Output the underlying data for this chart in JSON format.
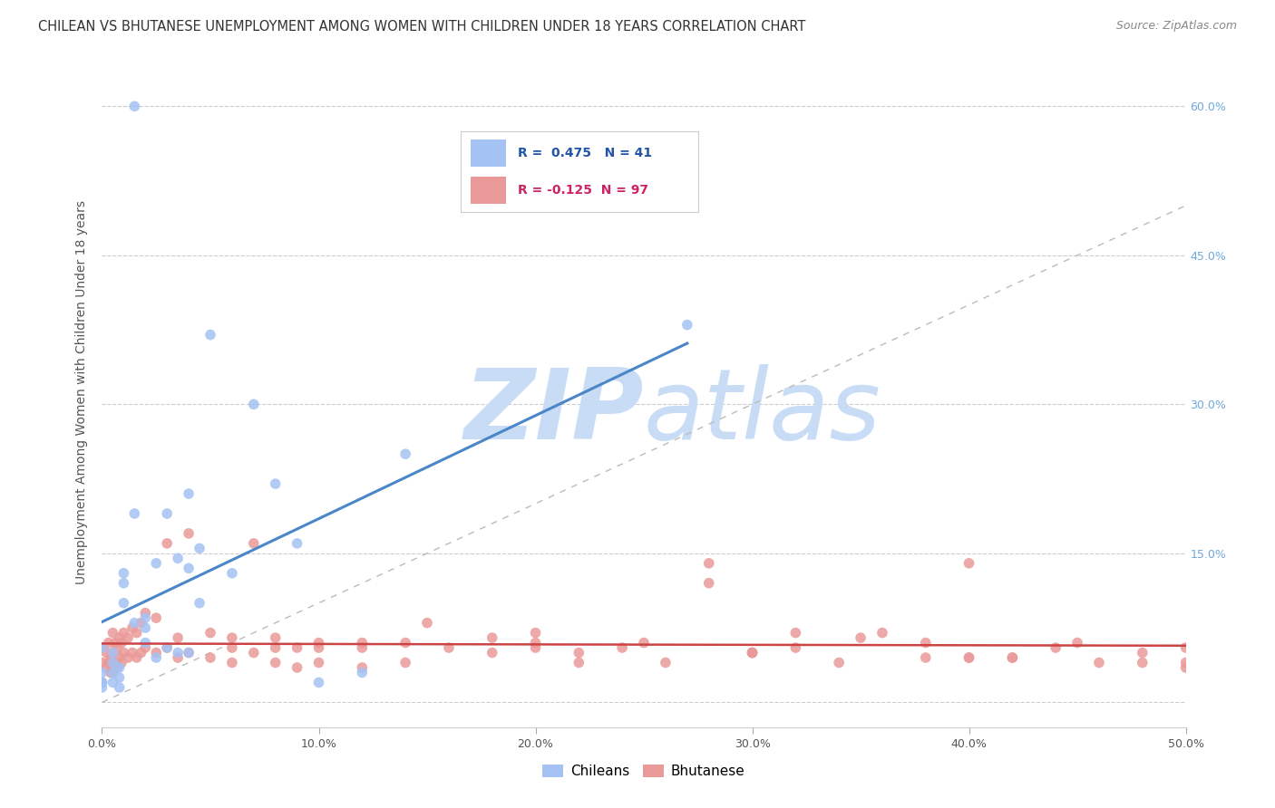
{
  "title": "CHILEAN VS BHUTANESE UNEMPLOYMENT AMONG WOMEN WITH CHILDREN UNDER 18 YEARS CORRELATION CHART",
  "source": "Source: ZipAtlas.com",
  "ylabel": "Unemployment Among Women with Children Under 18 years",
  "xlim": [
    0.0,
    0.5
  ],
  "ylim": [
    -0.025,
    0.65
  ],
  "chilean_R": 0.475,
  "chilean_N": 41,
  "bhutanese_R": -0.125,
  "bhutanese_N": 97,
  "chilean_color": "#a4c2f4",
  "bhutanese_color": "#ea9999",
  "chilean_line_color": "#4a86c8",
  "bhutanese_line_color": "#cc4444",
  "diagonal_color": "#bbbbbb",
  "watermark_color": "#ddeeff",
  "background_color": "#ffffff",
  "title_fontsize": 10.5,
  "axis_label_fontsize": 10,
  "tick_fontsize": 9,
  "right_tick_color": "#6fa8dc",
  "chilean_x": [
    0.015,
    0.0,
    0.005,
    0.005,
    0.01,
    0.01,
    0.01,
    0.015,
    0.015,
    0.02,
    0.02,
    0.02,
    0.025,
    0.025,
    0.03,
    0.03,
    0.035,
    0.035,
    0.04,
    0.04,
    0.04,
    0.045,
    0.045,
    0.05,
    0.06,
    0.07,
    0.08,
    0.09,
    0.1,
    0.12,
    0.14,
    0.0,
    0.0,
    0.0,
    0.0,
    0.005,
    0.005,
    0.008,
    0.008,
    0.008,
    0.27
  ],
  "chilean_y": [
    0.6,
    0.055,
    0.05,
    0.04,
    0.1,
    0.12,
    0.13,
    0.08,
    0.19,
    0.06,
    0.075,
    0.085,
    0.045,
    0.14,
    0.055,
    0.19,
    0.05,
    0.145,
    0.05,
    0.135,
    0.21,
    0.1,
    0.155,
    0.37,
    0.13,
    0.3,
    0.22,
    0.16,
    0.02,
    0.03,
    0.25,
    0.02,
    0.015,
    0.02,
    0.03,
    0.02,
    0.03,
    0.015,
    0.025,
    0.035,
    0.38
  ],
  "bhutanese_x": [
    0.0,
    0.0,
    0.0,
    0.002,
    0.002,
    0.003,
    0.003,
    0.004,
    0.004,
    0.005,
    0.005,
    0.005,
    0.006,
    0.006,
    0.007,
    0.007,
    0.008,
    0.008,
    0.009,
    0.009,
    0.01,
    0.01,
    0.012,
    0.012,
    0.014,
    0.014,
    0.016,
    0.016,
    0.018,
    0.018,
    0.02,
    0.02,
    0.025,
    0.025,
    0.03,
    0.03,
    0.035,
    0.035,
    0.04,
    0.04,
    0.05,
    0.05,
    0.06,
    0.06,
    0.07,
    0.07,
    0.08,
    0.08,
    0.09,
    0.09,
    0.1,
    0.1,
    0.12,
    0.12,
    0.14,
    0.14,
    0.16,
    0.18,
    0.2,
    0.22,
    0.24,
    0.26,
    0.28,
    0.3,
    0.32,
    0.34,
    0.36,
    0.38,
    0.4,
    0.42,
    0.44,
    0.46,
    0.48,
    0.5,
    0.15,
    0.2,
    0.25,
    0.3,
    0.35,
    0.4,
    0.45,
    0.5,
    0.1,
    0.2,
    0.3,
    0.4,
    0.5,
    0.12,
    0.22,
    0.32,
    0.42,
    0.08,
    0.18,
    0.28,
    0.38,
    0.48,
    0.06
  ],
  "bhutanese_y": [
    0.055,
    0.04,
    0.02,
    0.05,
    0.035,
    0.06,
    0.04,
    0.045,
    0.03,
    0.07,
    0.05,
    0.03,
    0.06,
    0.04,
    0.055,
    0.035,
    0.065,
    0.045,
    0.06,
    0.04,
    0.07,
    0.05,
    0.065,
    0.045,
    0.075,
    0.05,
    0.07,
    0.045,
    0.08,
    0.05,
    0.09,
    0.055,
    0.085,
    0.05,
    0.16,
    0.055,
    0.065,
    0.045,
    0.17,
    0.05,
    0.07,
    0.045,
    0.065,
    0.04,
    0.16,
    0.05,
    0.065,
    0.04,
    0.055,
    0.035,
    0.06,
    0.04,
    0.055,
    0.035,
    0.06,
    0.04,
    0.055,
    0.05,
    0.06,
    0.04,
    0.055,
    0.04,
    0.14,
    0.05,
    0.055,
    0.04,
    0.07,
    0.045,
    0.14,
    0.045,
    0.055,
    0.04,
    0.05,
    0.035,
    0.08,
    0.055,
    0.06,
    0.05,
    0.065,
    0.045,
    0.06,
    0.04,
    0.055,
    0.07,
    0.05,
    0.045,
    0.055,
    0.06,
    0.05,
    0.07,
    0.045,
    0.055,
    0.065,
    0.12,
    0.06,
    0.04,
    0.055
  ]
}
